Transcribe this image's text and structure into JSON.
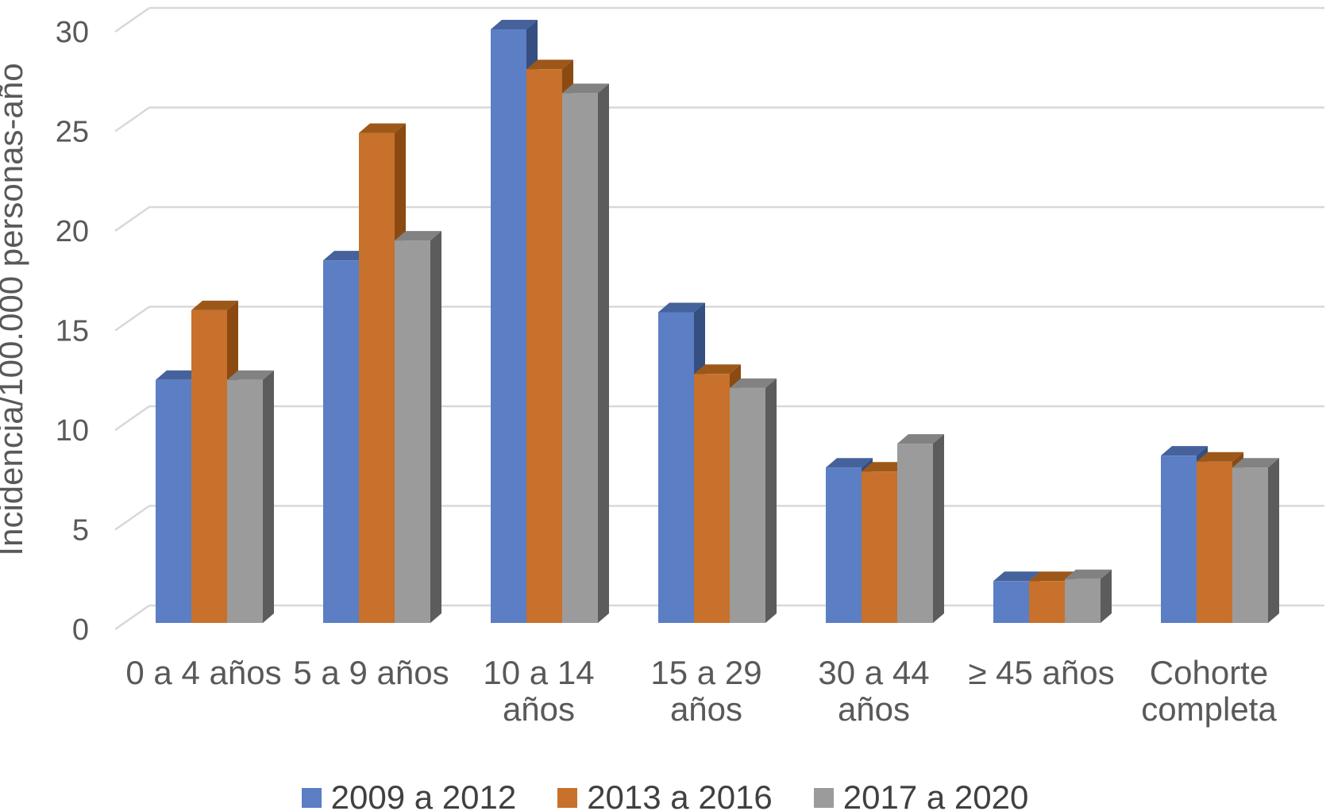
{
  "chart_data": {
    "type": "bar",
    "variant": "3d-clustered-column",
    "title": "",
    "xlabel": "",
    "ylabel": "Incidencia/100.000 personas-año",
    "ylim": [
      0,
      30
    ],
    "yticks": [
      0,
      5,
      10,
      15,
      20,
      25,
      30
    ],
    "grid": true,
    "legend_position": "bottom",
    "categories": [
      "0 a 4 años",
      "5 a 9 años",
      "10 a 14 años",
      "15 a 29 años",
      "30 a 44 años",
      "≥ 45 años",
      "Cohorte completa"
    ],
    "category_lines": [
      [
        "0 a 4 años"
      ],
      [
        "5 a 9 años"
      ],
      [
        "10 a 14",
        "años"
      ],
      [
        "15 a 29",
        "años"
      ],
      [
        "30 a 44",
        "años"
      ],
      [
        "≥ 45 años"
      ],
      [
        "Cohorte",
        "completa"
      ]
    ],
    "series": [
      {
        "name": "2009 a 2012",
        "color": "#5B7EC4",
        "top_color": "#46629C",
        "side_color": "#344F80",
        "values": [
          12.2,
          18.2,
          29.8,
          15.6,
          7.8,
          2.1,
          8.4
        ]
      },
      {
        "name": "2013 a 2016",
        "color": "#C7712C",
        "top_color": "#9D5819",
        "side_color": "#8A4A12",
        "values": [
          15.7,
          24.6,
          27.8,
          12.5,
          7.6,
          2.1,
          8.1
        ]
      },
      {
        "name": "2017 a 2020",
        "color": "#9B9B9B",
        "top_color": "#828282",
        "side_color": "#5C5C5C",
        "values": [
          12.2,
          19.2,
          26.6,
          11.8,
          9.0,
          2.2,
          7.8
        ]
      }
    ],
    "colors": {
      "background": "#FFFFFF",
      "gridline": "#D8D8D8",
      "axis_text": "#595959",
      "legend_text": "#404040"
    }
  }
}
